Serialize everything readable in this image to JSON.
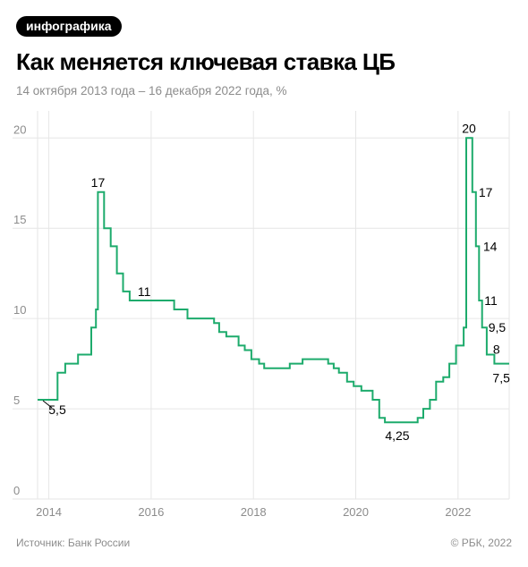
{
  "badge": "инфографика",
  "title": "Как меняется ключевая ставка ЦБ",
  "subtitle": "14 октября 2013 года – 16 декабря 2022 года, %",
  "footer": {
    "source": "Источник: Банк России",
    "copyright": "© РБК, 2022"
  },
  "colors": {
    "line": "#1dab6c",
    "grid": "#e6e6e6",
    "axis_text": "#8c8c8c",
    "label_text": "#000000"
  },
  "chart_data": {
    "type": "line",
    "step": true,
    "title": "Как меняется ключевая ставка ЦБ",
    "subtitle": "14 октября 2013 года – 16 декабря 2022 года, %",
    "xlim": [
      2013.78,
      2023.0
    ],
    "ylim": [
      0,
      21.5
    ],
    "x_ticks": [
      2014,
      2016,
      2018,
      2020,
      2022
    ],
    "x_tick_labels": [
      "2014",
      "2016",
      "2018",
      "2020",
      "2022"
    ],
    "y_ticks": [
      0,
      5,
      10,
      15,
      20
    ],
    "y_tick_labels": [
      "0",
      "5",
      "10",
      "15",
      "20"
    ],
    "grid": true,
    "series": [
      {
        "points": [
          [
            2013.78,
            5.5
          ],
          [
            2014.17,
            7.0
          ],
          [
            2014.32,
            7.5
          ],
          [
            2014.57,
            8.0
          ],
          [
            2014.83,
            9.5
          ],
          [
            2014.92,
            10.5
          ],
          [
            2014.96,
            17.0
          ],
          [
            2015.08,
            15.0
          ],
          [
            2015.21,
            14.0
          ],
          [
            2015.33,
            12.5
          ],
          [
            2015.45,
            11.5
          ],
          [
            2015.58,
            11.0
          ],
          [
            2016.45,
            10.5
          ],
          [
            2016.71,
            10.0
          ],
          [
            2017.23,
            9.75
          ],
          [
            2017.33,
            9.25
          ],
          [
            2017.47,
            9.0
          ],
          [
            2017.71,
            8.5
          ],
          [
            2017.83,
            8.25
          ],
          [
            2017.96,
            7.75
          ],
          [
            2018.11,
            7.5
          ],
          [
            2018.21,
            7.25
          ],
          [
            2018.71,
            7.5
          ],
          [
            2018.96,
            7.75
          ],
          [
            2019.46,
            7.5
          ],
          [
            2019.57,
            7.25
          ],
          [
            2019.67,
            7.0
          ],
          [
            2019.83,
            6.5
          ],
          [
            2019.96,
            6.25
          ],
          [
            2020.11,
            6.0
          ],
          [
            2020.33,
            5.5
          ],
          [
            2020.46,
            4.5
          ],
          [
            2020.57,
            4.25
          ],
          [
            2021.21,
            4.5
          ],
          [
            2021.32,
            5.0
          ],
          [
            2021.45,
            5.5
          ],
          [
            2021.57,
            6.5
          ],
          [
            2021.71,
            6.75
          ],
          [
            2021.83,
            7.5
          ],
          [
            2021.96,
            8.5
          ],
          [
            2022.11,
            9.5
          ],
          [
            2022.16,
            20.0
          ],
          [
            2022.28,
            17.0
          ],
          [
            2022.35,
            14.0
          ],
          [
            2022.41,
            11.0
          ],
          [
            2022.47,
            9.5
          ],
          [
            2022.56,
            8.0
          ],
          [
            2022.71,
            7.5
          ],
          [
            2023.0,
            7.5
          ]
        ]
      }
    ],
    "annotations": [
      {
        "text": "5,5",
        "x": 2013.78,
        "y": 5.5
      },
      {
        "text": "17",
        "x": 2014.96,
        "y": 17.0
      },
      {
        "text": "11",
        "x": 2015.58,
        "y": 11.0
      },
      {
        "text": "4,25",
        "x": 2020.9,
        "y": 4.25
      },
      {
        "text": "20",
        "x": 2022.16,
        "y": 20.0
      },
      {
        "text": "17",
        "x": 2022.28,
        "y": 17.0
      },
      {
        "text": "14",
        "x": 2022.35,
        "y": 14.0
      },
      {
        "text": "11",
        "x": 2022.41,
        "y": 11.0
      },
      {
        "text": "9,5",
        "x": 2022.47,
        "y": 9.5
      },
      {
        "text": "8",
        "x": 2022.56,
        "y": 8.0
      },
      {
        "text": "7,5",
        "x": 2022.71,
        "y": 7.5
      }
    ]
  }
}
